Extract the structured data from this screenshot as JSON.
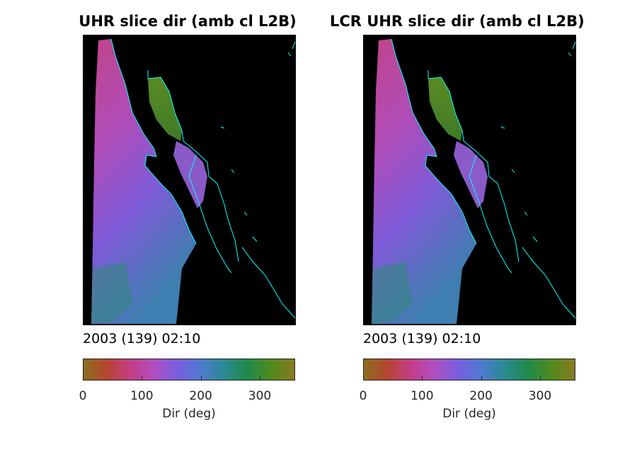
{
  "chart_data": [
    {
      "type": "heatmap",
      "title": "UHR slice dir (amb cl L2B)",
      "timestamp": "2003 (139) 02:10",
      "colorbar": {
        "label": "Dir (deg)",
        "range": [
          0,
          360
        ],
        "ticks": [
          0,
          100,
          200,
          300
        ],
        "colors": [
          "#8a6f1e",
          "#b5442f",
          "#c43d86",
          "#b24fc0",
          "#7a5de0",
          "#4f7ad0",
          "#2a8a92",
          "#1e8a4a",
          "#4f8a1e",
          "#8a7a20"
        ]
      },
      "coastline_color": "#00ffff",
      "background_color": "#000000"
    },
    {
      "type": "heatmap",
      "title": "LCR UHR slice dir (amb cl L2B)",
      "timestamp": "2003 (139) 02:10",
      "colorbar": {
        "label": "Dir (deg)",
        "range": [
          0,
          360
        ],
        "ticks": [
          0,
          100,
          200,
          300
        ],
        "colors": [
          "#8a6f1e",
          "#b5442f",
          "#c43d86",
          "#b24fc0",
          "#7a5de0",
          "#4f7ad0",
          "#2a8a92",
          "#1e8a4a",
          "#4f8a1e",
          "#8a7a20"
        ]
      },
      "coastline_color": "#00ffff",
      "background_color": "#000000"
    }
  ]
}
